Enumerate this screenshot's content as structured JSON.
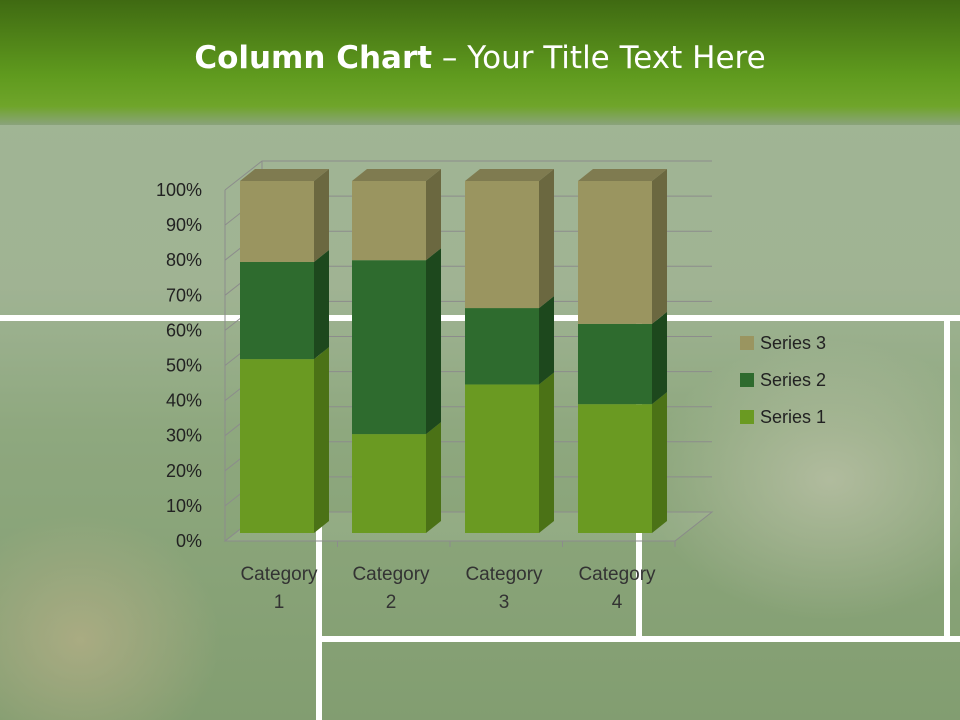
{
  "slide": {
    "title_bold": "Column Chart",
    "title_rest": " – Your Title Text Here"
  },
  "chart_data": {
    "type": "bar",
    "stacking": "percent",
    "style": "3d-stacked-column",
    "categories": [
      "Category 1",
      "Category 2",
      "Category 3",
      "Category 4"
    ],
    "category_lines": [
      [
        "Category",
        "1"
      ],
      [
        "Category",
        "2"
      ],
      [
        "Category",
        "3"
      ],
      [
        "Category",
        "4"
      ]
    ],
    "series": [
      {
        "name": "Series 1",
        "values": [
          49.4,
          28.1,
          42.2,
          36.6
        ],
        "color": "#6a9a22"
      },
      {
        "name": "Series 2",
        "values": [
          27.6,
          49.4,
          21.7,
          22.8
        ],
        "color": "#2e6b2e"
      },
      {
        "name": "Series 3",
        "values": [
          23.0,
          22.5,
          36.1,
          40.6
        ],
        "color": "#9a9560"
      }
    ],
    "ylim": [
      0,
      100
    ],
    "yticks": [
      "0%",
      "10%",
      "20%",
      "30%",
      "40%",
      "50%",
      "60%",
      "70%",
      "80%",
      "90%",
      "100%"
    ],
    "grid": true,
    "legend": "right",
    "xlabel": "",
    "ylabel": ""
  }
}
